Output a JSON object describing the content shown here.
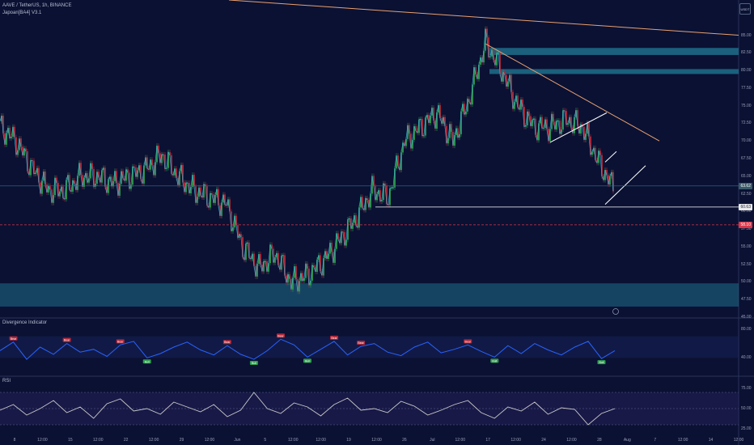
{
  "header": {
    "symbol_line": "AAVE / TetherUS, 1h, BINANCE",
    "indicator_line": "Japoan[BA4] V3.1",
    "currency_button": "USDT"
  },
  "panes": {
    "divergence_title": "Divergence Indicator",
    "rsi_title": "RSI",
    "alert_icon": "clock-icon"
  },
  "colors": {
    "background": "#0a1133",
    "bull": "#2e9e4f",
    "bear": "#b5283a",
    "trendline": "#e9a070",
    "zone": "#1f6f8b",
    "support": "#ffffff",
    "dashed_level": "#d9374a",
    "oscillator": "#2962ff",
    "rsi_line": "#c9c9c9"
  },
  "chart_data": [
    {
      "type": "line",
      "title": "AAVE / TetherUS, 1h, BINANCE",
      "xlabel": "",
      "ylabel": "",
      "ylim": [
        45,
        90
      ],
      "yticks": [
        "85.00",
        "82.50",
        "80.00",
        "77.50",
        "75.00",
        "72.50",
        "70.00",
        "67.50",
        "65.00",
        "62.50",
        "60.00",
        "57.50",
        "55.00",
        "52.50",
        "50.00",
        "47.50",
        "45.00"
      ],
      "xticks": [
        "8",
        "12:00",
        "15",
        "12:00",
        "22",
        "12:00",
        "29",
        "12:00",
        "Jun",
        "5",
        "12:00",
        "12:00",
        "19",
        "12:00",
        "26",
        "Jul",
        "12:00",
        "17",
        "12:00",
        "24",
        "12:00",
        "28",
        "Aug",
        "7",
        "12:00",
        "14",
        "12:00"
      ],
      "price_labels": [
        "63.62",
        "60.63",
        "58.10"
      ],
      "series": [
        {
          "x": [
            0,
            20,
            40,
            60,
            80,
            100,
            120,
            140,
            160,
            180,
            200,
            220,
            240,
            260,
            280,
            300,
            320,
            340,
            360,
            380,
            400,
            420,
            440,
            460,
            480,
            500,
            520,
            540,
            560,
            580,
            600,
            620,
            640,
            660,
            680,
            700,
            720,
            740,
            760
          ],
          "values": [
            72,
            70,
            66,
            63,
            63,
            65,
            65,
            64,
            65,
            66,
            68,
            65,
            63,
            62,
            61,
            55,
            52,
            54,
            50,
            51,
            53,
            56,
            59,
            63,
            62,
            70,
            72,
            74,
            70,
            76,
            84,
            80,
            75,
            72,
            72,
            73,
            72,
            67,
            63
          ]
        }
      ],
      "zones": [
        {
          "from": 82.2,
          "to": 83.2
        },
        {
          "from": 79.5,
          "to": 80.2
        },
        {
          "from": 46.5,
          "to": 49.8
        }
      ],
      "levels": {
        "support": 60.63,
        "dashed": 58.1,
        "last": 63.62
      }
    },
    {
      "type": "line",
      "title": "Divergence Indicator",
      "ylim": [
        20,
        90
      ],
      "yticks": [
        "80.00",
        "40.00"
      ],
      "signals": [
        "Bear",
        "Bull"
      ],
      "series": [
        {
          "values": [
            50,
            62,
            38,
            55,
            45,
            60,
            48,
            52,
            42,
            58,
            63,
            40,
            46,
            55,
            62,
            51,
            44,
            57,
            45,
            38,
            50,
            66,
            58,
            41,
            52,
            63,
            44,
            56,
            60,
            48,
            43,
            55,
            62,
            47,
            52,
            58,
            49,
            41,
            57,
            46,
            60,
            51,
            44,
            55,
            63,
            39,
            50
          ]
        }
      ]
    },
    {
      "type": "line",
      "title": "RSI",
      "ylim": [
        20,
        85
      ],
      "yticks": [
        "75.00",
        "50.00",
        "25.00"
      ],
      "series": [
        {
          "values": [
            48,
            55,
            42,
            50,
            60,
            45,
            52,
            38,
            56,
            62,
            47,
            50,
            43,
            58,
            52,
            46,
            55,
            40,
            48,
            70,
            50,
            44,
            57,
            52,
            41,
            55,
            63,
            48,
            50,
            45,
            59,
            53,
            42,
            48,
            55,
            60,
            45,
            38,
            52,
            47,
            58,
            43,
            51,
            49,
            30,
            44,
            50
          ]
        }
      ]
    }
  ]
}
